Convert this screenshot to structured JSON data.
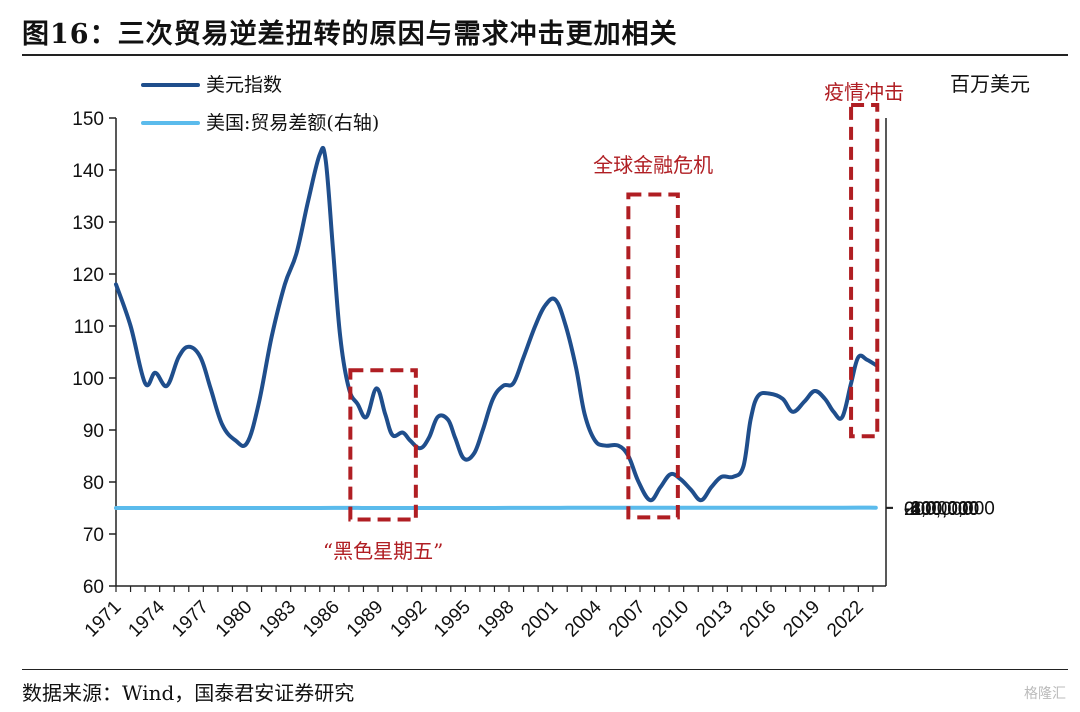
{
  "figure": {
    "title": "图16：三次贸易逆差扭转的原因与需求冲击更加相关",
    "source": "数据来源：Wind，国泰君安证券研究",
    "watermark": "格隆汇"
  },
  "chart_data": {
    "type": "line",
    "title": "",
    "xlabel": "",
    "x_tick_labels": [
      "1971",
      "1974",
      "1977",
      "1980",
      "1983",
      "1986",
      "1989",
      "1992",
      "1995",
      "1998",
      "2001",
      "2004",
      "2007",
      "2010",
      "2013",
      "2016",
      "2019",
      "2022"
    ],
    "y_left": {
      "range": [
        60,
        150
      ],
      "ticks": [
        60,
        70,
        80,
        90,
        100,
        110,
        120,
        130,
        140,
        150
      ],
      "label": ""
    },
    "y_right": {
      "range": [
        200000,
        -1000000
      ],
      "inverted": true,
      "ticks": [
        -1000000,
        -800000,
        -600000,
        -400000,
        -200000,
        0,
        200000
      ],
      "tick_labels": [
        "-1,000,000",
        "-800,000",
        "-600,000",
        "-400,000",
        "-200,000",
        "0",
        "200,000"
      ],
      "label": "百万美元"
    },
    "legend": {
      "position": "top-left"
    },
    "series": [
      {
        "name": "美元指数",
        "axis": "left",
        "color": "#1f4e8c",
        "points": [
          [
            1971.0,
            118
          ],
          [
            1972.0,
            110
          ],
          [
            1973.0,
            99
          ],
          [
            1973.7,
            101
          ],
          [
            1974.5,
            98.5
          ],
          [
            1975.3,
            104
          ],
          [
            1976.0,
            106
          ],
          [
            1976.8,
            104
          ],
          [
            1977.5,
            98
          ],
          [
            1978.3,
            91
          ],
          [
            1979.2,
            88
          ],
          [
            1980.0,
            87.5
          ],
          [
            1980.8,
            95
          ],
          [
            1981.7,
            108
          ],
          [
            1982.6,
            118
          ],
          [
            1983.4,
            124
          ],
          [
            1984.2,
            134
          ],
          [
            1985.0,
            143
          ],
          [
            1985.4,
            142
          ],
          [
            1985.9,
            125
          ],
          [
            1986.4,
            108
          ],
          [
            1987.0,
            98
          ],
          [
            1987.6,
            95
          ],
          [
            1988.2,
            92.5
          ],
          [
            1988.9,
            98
          ],
          [
            1989.5,
            93
          ],
          [
            1990.0,
            89
          ],
          [
            1990.7,
            89.5
          ],
          [
            1991.2,
            88
          ],
          [
            1991.9,
            86.5
          ],
          [
            1992.5,
            88.5
          ],
          [
            1993.1,
            92.5
          ],
          [
            1993.8,
            92
          ],
          [
            1994.3,
            88.5
          ],
          [
            1994.9,
            84.5
          ],
          [
            1995.6,
            85.5
          ],
          [
            1996.2,
            90
          ],
          [
            1996.9,
            96
          ],
          [
            1997.6,
            98.5
          ],
          [
            1998.3,
            99
          ],
          [
            1999.0,
            104
          ],
          [
            1999.8,
            110
          ],
          [
            2000.5,
            114
          ],
          [
            2001.2,
            115
          ],
          [
            2001.9,
            110
          ],
          [
            2002.6,
            102
          ],
          [
            2003.2,
            93
          ],
          [
            2003.9,
            88
          ],
          [
            2004.6,
            87
          ],
          [
            2005.5,
            87
          ],
          [
            2006.2,
            85
          ],
          [
            2006.9,
            80
          ],
          [
            2007.7,
            76.5
          ],
          [
            2008.4,
            79
          ],
          [
            2009.1,
            81.5
          ],
          [
            2009.8,
            80.5
          ],
          [
            2010.5,
            78.5
          ],
          [
            2011.2,
            76.5
          ],
          [
            2011.9,
            79
          ],
          [
            2012.6,
            81
          ],
          [
            2013.4,
            81
          ],
          [
            2014.1,
            83
          ],
          [
            2014.6,
            92
          ],
          [
            2015.1,
            96.5
          ],
          [
            2015.9,
            97
          ],
          [
            2016.8,
            96
          ],
          [
            2017.5,
            93.5
          ],
          [
            2018.3,
            95.5
          ],
          [
            2019.0,
            97.5
          ],
          [
            2019.7,
            96
          ],
          [
            2020.3,
            93.5
          ],
          [
            2020.9,
            92.5
          ],
          [
            2021.5,
            99
          ],
          [
            2022.0,
            104
          ],
          [
            2022.6,
            103.5
          ],
          [
            2023.2,
            102.5
          ]
        ]
      },
      {
        "name": "美国:贸易差额(右轴)",
        "axis": "right",
        "color": "#5bbbec",
        "points": [
          [
            1971.0,
            0
          ],
          [
            1972.0,
            -2
          ],
          [
            1973.0,
            2
          ],
          [
            1974.0,
            -5
          ],
          [
            1975.0,
            10
          ],
          [
            1976.0,
            -5
          ],
          [
            1977.0,
            -25
          ],
          [
            1978.0,
            -30
          ],
          [
            1979.0,
            -27
          ],
          [
            1980.0,
            -25
          ],
          [
            1981.0,
            -20
          ],
          [
            1982.0,
            -25
          ],
          [
            1983.0,
            -50
          ],
          [
            1984.0,
            -110
          ],
          [
            1985.0,
            -125
          ],
          [
            1986.0,
            -145
          ],
          [
            1987.0,
            -155
          ],
          [
            1987.6,
            -140
          ],
          [
            1988.2,
            -115
          ],
          [
            1989.0,
            -100
          ],
          [
            1990.0,
            -90
          ],
          [
            1991.0,
            -30
          ],
          [
            1992.0,
            -35
          ],
          [
            1993.0,
            -65
          ],
          [
            1994.0,
            -90
          ],
          [
            1995.0,
            -95
          ],
          [
            1996.0,
            -95
          ],
          [
            1997.0,
            -120
          ],
          [
            1998.0,
            -160
          ],
          [
            1999.0,
            -250
          ],
          [
            2000.0,
            -350
          ],
          [
            2001.0,
            -365
          ],
          [
            2002.0,
            -420
          ],
          [
            2003.0,
            -490
          ],
          [
            2004.0,
            -600
          ],
          [
            2005.0,
            -710
          ],
          [
            2006.0,
            -765
          ],
          [
            2006.5,
            -755
          ],
          [
            2007.2,
            -720
          ],
          [
            2008.0,
            -725
          ],
          [
            2008.6,
            -650
          ],
          [
            2009.2,
            -400
          ],
          [
            2009.8,
            -460
          ],
          [
            2010.5,
            -540
          ],
          [
            2011.3,
            -555
          ],
          [
            2012.0,
            -540
          ],
          [
            2012.7,
            -480
          ],
          [
            2013.5,
            -455
          ],
          [
            2014.3,
            -480
          ],
          [
            2015.0,
            -490
          ],
          [
            2016.0,
            -485
          ],
          [
            2017.0,
            -520
          ],
          [
            2018.0,
            -590
          ],
          [
            2018.6,
            -570
          ],
          [
            2019.2,
            -575
          ],
          [
            2020.0,
            -670
          ],
          [
            2021.0,
            -850
          ],
          [
            2022.0,
            -960
          ],
          [
            2022.5,
            -955
          ],
          [
            2023.2,
            -790
          ]
        ]
      }
    ],
    "annotations": [
      {
        "label": "“黑色星期五”",
        "x_range": [
          1987.1,
          1991.6
        ],
        "y_range": [
          72.8,
          101.5
        ]
      },
      {
        "label": "全球金融危机",
        "x_range": [
          2006.2,
          2009.6
        ],
        "y_range": [
          73.2,
          135.3
        ]
      },
      {
        "label": "疫情冲击",
        "x_range": [
          2021.5,
          2023.3
        ],
        "y_range": [
          88.8,
          152.5
        ]
      }
    ],
    "grid": false
  }
}
